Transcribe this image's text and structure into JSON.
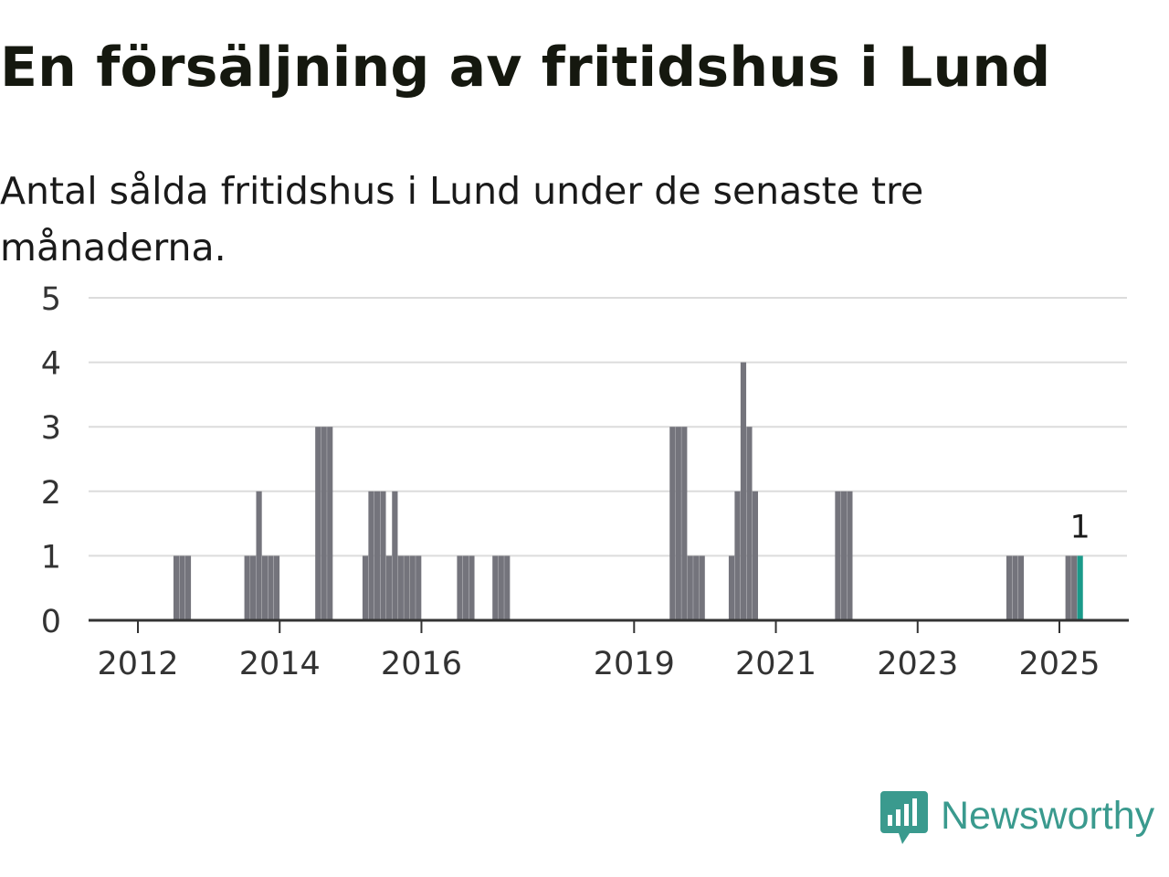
{
  "title": "En försäljning av fritidshus i Lund",
  "subtitle": "Antal sålda fritidshus i Lund under de senaste tre månaderna.",
  "brand": {
    "name": "Newsworthy",
    "icon": "newsworthy-logo-icon",
    "color": "#3a9a8e"
  },
  "chart_data": {
    "type": "bar",
    "title": "En försäljning av fritidshus i Lund",
    "subtitle": "Antal sålda fritidshus i Lund under de senaste tre månaderna.",
    "xlabel": "",
    "ylabel": "",
    "ylim": [
      0,
      5
    ],
    "y_ticks": [
      0,
      1,
      2,
      3,
      4,
      5
    ],
    "x_ticks": [
      "2012",
      "2014",
      "2016",
      "2019",
      "2021",
      "2023",
      "2025"
    ],
    "x_ticks_value": [
      2012,
      2014,
      2016,
      2019,
      2021,
      2023,
      2025
    ],
    "grid": true,
    "bar_color": "#74747c",
    "highlight_color": "#1a9a8a",
    "annotation": {
      "text": "1",
      "target": "2025-04"
    },
    "series": [
      {
        "x": [
          "2012-07",
          "2012-08",
          "2012-09",
          "2013-07",
          "2013-08",
          "2013-09",
          "2013-10",
          "2013-11",
          "2013-12",
          "2014-07",
          "2014-08",
          "2014-09",
          "2015-03",
          "2015-04",
          "2015-05",
          "2015-06",
          "2015-07",
          "2015-08",
          "2015-09",
          "2015-10",
          "2015-11",
          "2015-12",
          "2016-07",
          "2016-08",
          "2016-09",
          "2017-01",
          "2017-02",
          "2017-03",
          "2019-07",
          "2019-08",
          "2019-09",
          "2019-10",
          "2019-11",
          "2019-12",
          "2020-05",
          "2020-06",
          "2020-07",
          "2020-08",
          "2020-09",
          "2021-11",
          "2021-12",
          "2022-01",
          "2024-04",
          "2024-05",
          "2024-06",
          "2025-02",
          "2025-03",
          "2025-04"
        ],
        "values": [
          1,
          1,
          1,
          1,
          1,
          2,
          1,
          1,
          1,
          3,
          3,
          3,
          1,
          2,
          2,
          2,
          1,
          2,
          1,
          1,
          1,
          1,
          1,
          1,
          1,
          1,
          1,
          1,
          3,
          3,
          3,
          1,
          1,
          1,
          1,
          2,
          4,
          3,
          2,
          2,
          2,
          2,
          1,
          1,
          1,
          1,
          1,
          1
        ]
      }
    ]
  }
}
